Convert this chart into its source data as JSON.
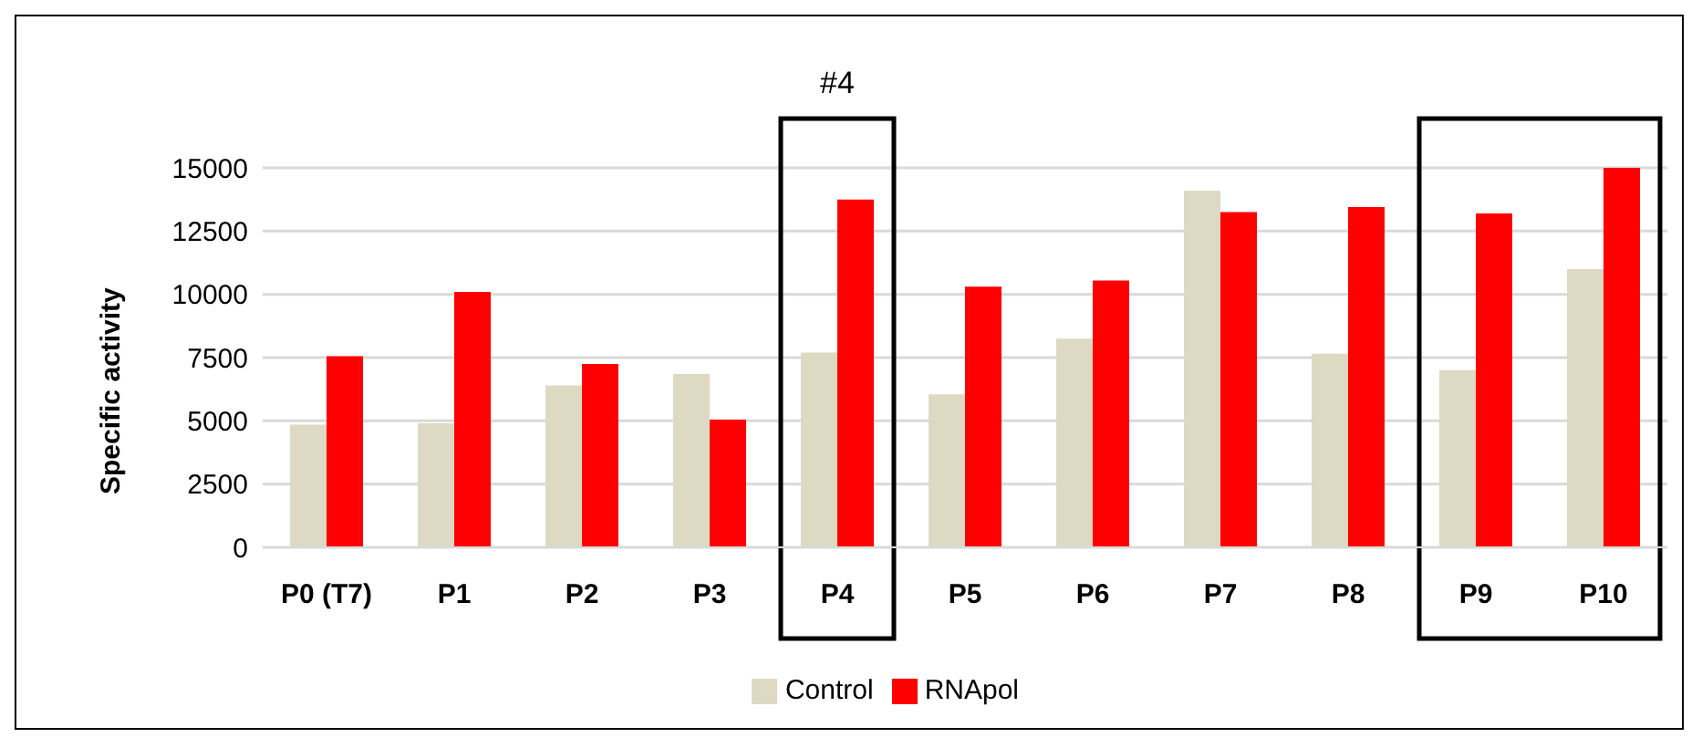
{
  "chart_data": {
    "type": "bar",
    "ylabel": "Specific activity",
    "categories": [
      "P0 (T7)",
      "P1",
      "P2",
      "P3",
      "P4",
      "P5",
      "P6",
      "P7",
      "P8",
      "P9",
      "P10"
    ],
    "series": [
      {
        "name": "Control",
        "color": "#ddd9c3",
        "values": [
          4850,
          4900,
          6400,
          6850,
          7700,
          6050,
          8250,
          14100,
          7650,
          7000,
          11000
        ]
      },
      {
        "name": "RNApol",
        "color": "#ff0000",
        "values": [
          7550,
          10100,
          7250,
          5050,
          13750,
          10300,
          10550,
          13250,
          13450,
          13200,
          15000
        ]
      }
    ],
    "ylim": [
      0,
      15000
    ],
    "yticks": [
      0,
      2500,
      5000,
      7500,
      10000,
      12500,
      15000
    ],
    "grid": "y",
    "legend": "bottom",
    "annotations": [
      "#4"
    ]
  }
}
